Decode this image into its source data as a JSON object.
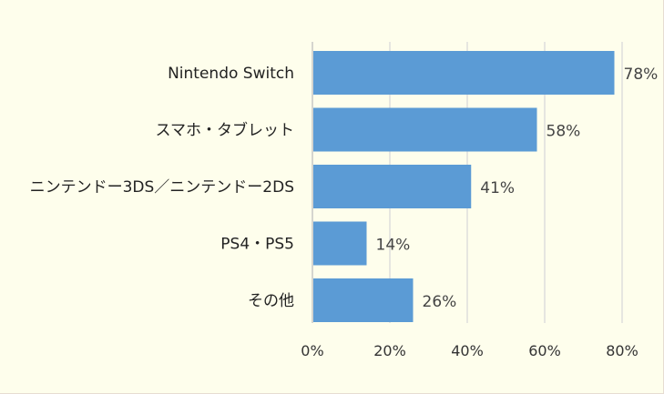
{
  "chart_data": {
    "type": "bar",
    "orientation": "horizontal",
    "categories": [
      "Nintendo Switch",
      "スマホ・タブレット",
      "ニンテンドー3DS／ニンテンドー2DS",
      "PS4・PS5",
      "その他"
    ],
    "values": [
      78,
      58,
      41,
      14,
      26
    ],
    "data_labels": [
      "78%",
      "58%",
      "41%",
      "14%",
      "26%"
    ],
    "xlim": [
      0,
      80
    ],
    "xticks": [
      0,
      20,
      40,
      60,
      80
    ],
    "xtick_labels": [
      "0%",
      "20%",
      "40%",
      "60%",
      "80%"
    ],
    "grid": true,
    "colors": {
      "bar": "#5b9bd5",
      "background": "#fefeec",
      "grid": "#d9d9d9"
    }
  }
}
